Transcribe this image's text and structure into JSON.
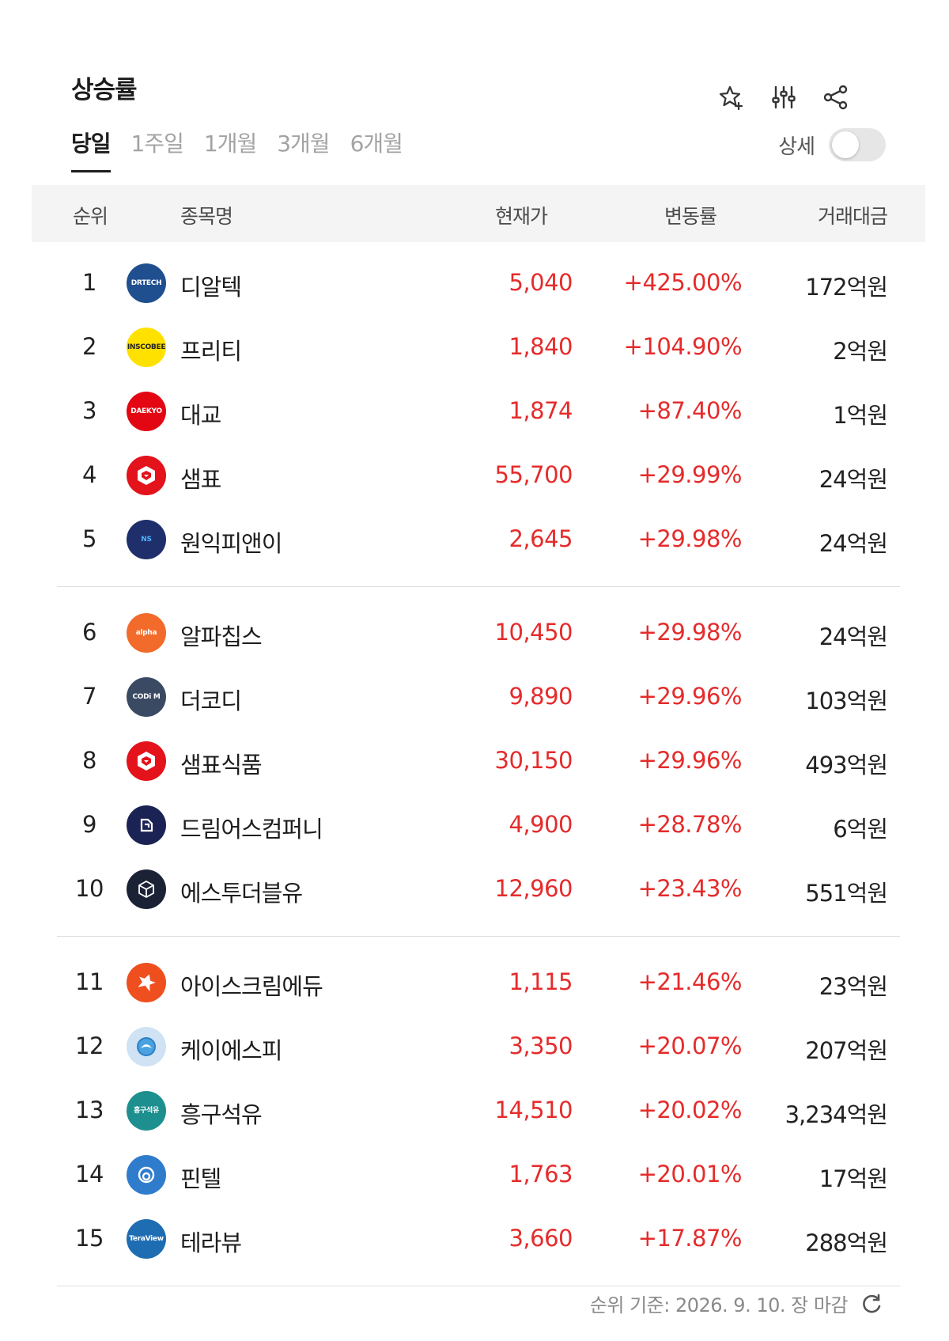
{
  "title": "상승률",
  "tabs": [
    "당일",
    "1주일",
    "1개월",
    "3개월",
    "6개월"
  ],
  "detail_label": "상세",
  "columns": {
    "rank": "순위",
    "name": "종목명",
    "price": "현재가",
    "change": "변동률",
    "volume": "거래대금"
  },
  "rows": [
    {
      "rank": "1",
      "name": "디알텍",
      "price": "5,040",
      "change": "+425.00%",
      "volume": "172억원",
      "logo_text": "DRTECH",
      "logo_bg": "#1f4f8f",
      "logo_fg": "#ffffff"
    },
    {
      "rank": "2",
      "name": "프리티",
      "price": "1,840",
      "change": "+104.90%",
      "volume": "2억원",
      "logo_text": "INSCOBEE",
      "logo_bg": "#ffe100",
      "logo_fg": "#222222"
    },
    {
      "rank": "3",
      "name": "대교",
      "price": "1,874",
      "change": "+87.40%",
      "volume": "1억원",
      "logo_text": "DAEKYO",
      "logo_bg": "#e30613",
      "logo_fg": "#ffffff"
    },
    {
      "rank": "4",
      "name": "샘표",
      "price": "55,700",
      "change": "+29.99%",
      "volume": "24억원",
      "logo_text": "",
      "logo_bg": "#e3121b",
      "logo_fg": "#ffffff"
    },
    {
      "rank": "5",
      "name": "원익피앤이",
      "price": "2,645",
      "change": "+29.98%",
      "volume": "24억원",
      "logo_text": "NS",
      "logo_bg": "#1e2f6b",
      "logo_fg": "#4fb3ff"
    },
    {
      "rank": "6",
      "name": "알파칩스",
      "price": "10,450",
      "change": "+29.98%",
      "volume": "24억원",
      "logo_text": "alpha",
      "logo_bg": "#f26b2a",
      "logo_fg": "#ffffff"
    },
    {
      "rank": "7",
      "name": "더코디",
      "price": "9,890",
      "change": "+29.96%",
      "volume": "103억원",
      "logo_text": "CODi M",
      "logo_bg": "#3a4a63",
      "logo_fg": "#ffffff"
    },
    {
      "rank": "8",
      "name": "샘표식품",
      "price": "30,150",
      "change": "+29.96%",
      "volume": "493억원",
      "logo_text": "",
      "logo_bg": "#e3121b",
      "logo_fg": "#ffffff"
    },
    {
      "rank": "9",
      "name": "드림어스컴퍼니",
      "price": "4,900",
      "change": "+28.78%",
      "volume": "6억원",
      "logo_text": "",
      "logo_bg": "#1b2354",
      "logo_fg": "#ffffff"
    },
    {
      "rank": "10",
      "name": "에스투더블유",
      "price": "12,960",
      "change": "+23.43%",
      "volume": "551억원",
      "logo_text": "",
      "logo_bg": "#1c2236",
      "logo_fg": "#ffffff"
    },
    {
      "rank": "11",
      "name": "아이스크림에듀",
      "price": "1,115",
      "change": "+21.46%",
      "volume": "23억원",
      "logo_text": "",
      "logo_bg": "#ef4f1f",
      "logo_fg": "#ffffff"
    },
    {
      "rank": "12",
      "name": "케이에스피",
      "price": "3,350",
      "change": "+20.07%",
      "volume": "207억원",
      "logo_text": "",
      "logo_bg": "#cfe3f4",
      "logo_fg": "#2d7fc4"
    },
    {
      "rank": "13",
      "name": "흥구석유",
      "price": "14,510",
      "change": "+20.02%",
      "volume": "3,234억원",
      "logo_text": "흥구석유",
      "logo_bg": "#1e8f8f",
      "logo_fg": "#ffffff"
    },
    {
      "rank": "14",
      "name": "핀텔",
      "price": "1,763",
      "change": "+20.01%",
      "volume": "17억원",
      "logo_text": "",
      "logo_bg": "#2f7ccc",
      "logo_fg": "#ffffff"
    },
    {
      "rank": "15",
      "name": "테라뷰",
      "price": "3,660",
      "change": "+17.87%",
      "volume": "288억원",
      "logo_text": "TeraView",
      "logo_bg": "#1e6db3",
      "logo_fg": "#ffffff"
    }
  ],
  "footer": "순위 기준: 2026. 9. 10. 장 마감",
  "icons": {
    "favorite": "star-plus-icon",
    "settings": "sliders-icon",
    "share": "share-icon",
    "refresh": "refresh-icon"
  },
  "colors": {
    "up": "#e52b2b",
    "text": "#1d1d1d",
    "header_bg": "#f4f4f4"
  }
}
